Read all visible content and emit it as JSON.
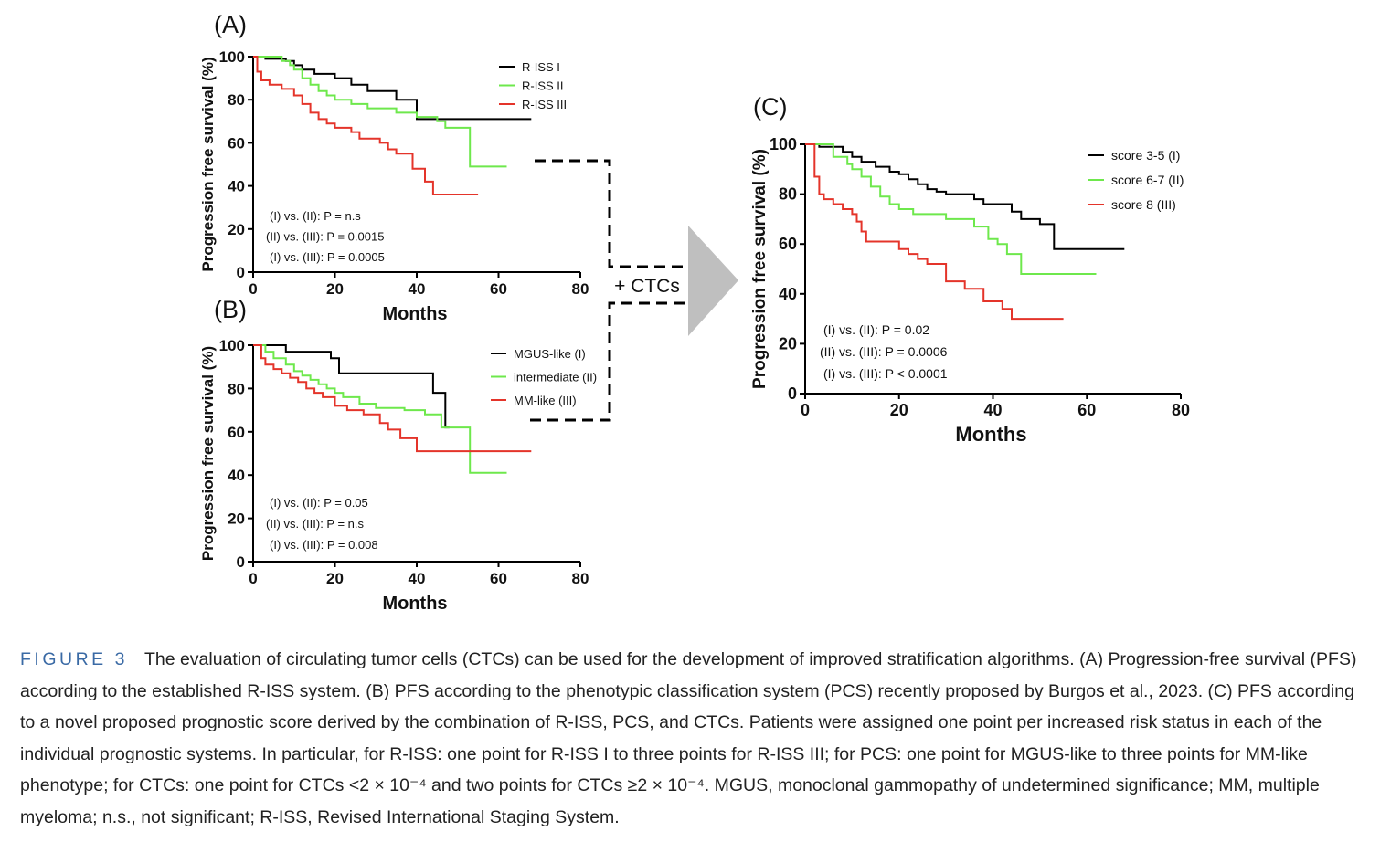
{
  "colors": {
    "black": "#000000",
    "green": "#6ee84c",
    "red": "#e4342a",
    "arrow": "#bfbfbf",
    "caption_label": "#3a6aa5"
  },
  "connector": {
    "label": "+ CTCs"
  },
  "caption": {
    "label": "FIGURE 3",
    "text": "The evaluation of circulating tumor cells (CTCs) can be used for the development of improved stratification algorithms. (A) Progression-free survival (PFS) according to the established R-ISS system. (B) PFS according to the phenotypic classification system (PCS) recently proposed by Burgos et al., 2023. (C) PFS according to a novel proposed prognostic score derived by the combination of R-ISS, PCS, and CTCs. Patients were assigned one point per increased risk status in each of the individual prognostic systems. In particular, for R-ISS: one point for R-ISS I to three points for R-ISS III; for PCS: one point for MGUS-like to three points for MM-like phenotype; for CTCs: one point for CTCs <2 × 10⁻⁴ and two points for CTCs ≥2 × 10⁻⁴. MGUS, monoclonal gammopathy of undetermined significance; MM, multiple myeloma; n.s., not significant; R-ISS, Revised International Staging System."
  },
  "chart_data": [
    {
      "panel": "(A)",
      "type": "line",
      "step": true,
      "xlabel": "Months",
      "ylabel": "Progression free survival (%)",
      "xlim": [
        0,
        80
      ],
      "ylim": [
        0,
        100
      ],
      "xticks": [
        0,
        20,
        40,
        60,
        80
      ],
      "yticks": [
        0,
        20,
        40,
        60,
        80,
        100
      ],
      "legend_position": "top-right",
      "series": [
        {
          "name": "R-ISS I",
          "color": "#000000",
          "x": [
            0,
            3,
            8,
            10,
            12,
            15,
            20,
            24,
            28,
            35,
            40,
            68
          ],
          "y": [
            100,
            99,
            98,
            96,
            94,
            92,
            90,
            87,
            84,
            80,
            71,
            71
          ]
        },
        {
          "name": "R-ISS II",
          "color": "#6ee84c",
          "x": [
            0,
            7,
            9,
            10,
            12,
            14,
            16,
            18,
            20,
            24,
            28,
            35,
            40,
            45,
            47,
            53,
            62
          ],
          "y": [
            100,
            98,
            96,
            94,
            90,
            87,
            84,
            82,
            80,
            78,
            76,
            74,
            72,
            70,
            67,
            49,
            49
          ]
        },
        {
          "name": "R-ISS III",
          "color": "#e4342a",
          "x": [
            0,
            1,
            2,
            4,
            7,
            10,
            12,
            14,
            16,
            18,
            20,
            24,
            26,
            31,
            33,
            35,
            39,
            42,
            44,
            55
          ],
          "y": [
            100,
            93,
            89,
            87,
            85,
            82,
            78,
            74,
            71,
            69,
            67,
            65,
            62,
            60,
            57,
            55,
            48,
            42,
            36,
            36
          ]
        }
      ],
      "annotations": [
        "(I) vs. (II): P = n.s",
        "(II) vs. (III): P = 0.0015",
        "(I) vs. (III): P = 0.0005"
      ]
    },
    {
      "panel": "(B)",
      "type": "line",
      "step": true,
      "xlabel": "Months",
      "ylabel": "Progression free survival (%)",
      "xlim": [
        0,
        80
      ],
      "ylim": [
        0,
        100
      ],
      "xticks": [
        0,
        20,
        40,
        60,
        80
      ],
      "yticks": [
        0,
        20,
        40,
        60,
        80,
        100
      ],
      "legend_position": "top-right",
      "series": [
        {
          "name": "MGUS-like (I)",
          "color": "#000000",
          "x": [
            0,
            4,
            8,
            19,
            21,
            42,
            44,
            47,
            48
          ],
          "y": [
            100,
            100,
            97,
            94,
            87,
            87,
            78,
            62,
            62
          ]
        },
        {
          "name": "intermediate (II)",
          "color": "#6ee84c",
          "x": [
            0,
            3,
            5,
            8,
            10,
            12,
            14,
            16,
            18,
            20,
            22,
            26,
            30,
            37,
            42,
            46,
            53,
            62
          ],
          "y": [
            100,
            97,
            94,
            91,
            88,
            86,
            84,
            82,
            80,
            78,
            76,
            73,
            71,
            70,
            68,
            62,
            41,
            41
          ]
        },
        {
          "name": "MM-like (III)",
          "color": "#e4342a",
          "x": [
            0,
            2,
            3,
            5,
            7,
            9,
            11,
            13,
            15,
            17,
            20,
            23,
            27,
            31,
            33,
            36,
            40,
            68
          ],
          "y": [
            100,
            94,
            91,
            89,
            87,
            85,
            83,
            80,
            78,
            76,
            72,
            70,
            68,
            64,
            61,
            57,
            51,
            51
          ]
        }
      ],
      "annotations": [
        "(I) vs. (II): P = 0.05",
        "(II) vs. (III): P = n.s",
        "(I) vs. (III): P = 0.008"
      ]
    },
    {
      "panel": "(C)",
      "type": "line",
      "step": true,
      "xlabel": "Months",
      "ylabel": "Progression free survival (%)",
      "xlim": [
        0,
        80
      ],
      "ylim": [
        0,
        100
      ],
      "xticks": [
        0,
        20,
        40,
        60,
        80
      ],
      "yticks": [
        0,
        20,
        40,
        60,
        80,
        100
      ],
      "legend_position": "top-right",
      "series": [
        {
          "name": "score 3-5 (I)",
          "color": "#000000",
          "x": [
            0,
            3,
            8,
            10,
            12,
            15,
            18,
            20,
            22,
            24,
            26,
            28,
            30,
            36,
            38,
            44,
            46,
            50,
            53,
            68
          ],
          "y": [
            100,
            99,
            97,
            95,
            93,
            91,
            89,
            88,
            86,
            84,
            82,
            81,
            80,
            78,
            76,
            73,
            70,
            68,
            58,
            58
          ]
        },
        {
          "name": "score 6-7 (II)",
          "color": "#6ee84c",
          "x": [
            0,
            6,
            9,
            10,
            12,
            14,
            16,
            18,
            20,
            23,
            30,
            36,
            39,
            41,
            43,
            46,
            62
          ],
          "y": [
            100,
            95,
            92,
            90,
            87,
            83,
            79,
            76,
            74,
            72,
            70,
            67,
            62,
            60,
            56,
            48,
            48
          ]
        },
        {
          "name": "score 8 (III)",
          "color": "#e4342a",
          "x": [
            0,
            2,
            3,
            4,
            6,
            8,
            10,
            11,
            12,
            13,
            20,
            22,
            24,
            26,
            30,
            34,
            38,
            42,
            44,
            55
          ],
          "y": [
            100,
            87,
            80,
            78,
            76,
            74,
            72,
            69,
            65,
            61,
            58,
            56,
            54,
            52,
            45,
            42,
            37,
            34,
            30,
            30
          ]
        }
      ],
      "annotations": [
        "(I) vs. (II): P = 0.02",
        "(II) vs. (III): P = 0.0006",
        "(I) vs. (III): P < 0.0001"
      ]
    }
  ]
}
